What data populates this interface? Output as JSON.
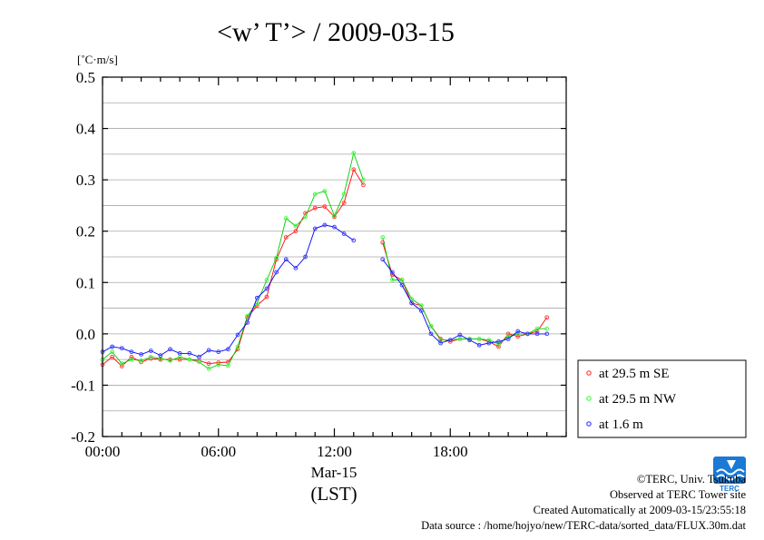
{
  "chart_data": {
    "type": "line",
    "title": "<w’ T’> / 2009-03-15",
    "unit_label": "[˚C·m/s]",
    "xlabel": "(LST)",
    "date_label": "Mar-15",
    "x_ticks": [
      "00:00",
      "06:00",
      "12:00",
      "18:00"
    ],
    "x_tick_hours": [
      0,
      6,
      12,
      18
    ],
    "xlim_hours": [
      0,
      24
    ],
    "ylim": [
      -0.2,
      0.5
    ],
    "y_ticks": [
      "-0.2",
      "-0.1",
      "0.0",
      "0.1",
      "0.2",
      "0.3",
      "0.4",
      "0.5"
    ],
    "y_tick_values": [
      -0.2,
      -0.1,
      0.0,
      0.1,
      0.2,
      0.3,
      0.4,
      0.5
    ],
    "grid": true,
    "legend_position": "right, outside plot",
    "x_time_step_hours": 0.5,
    "series": [
      {
        "name": "at 29.5 m SE",
        "color": "#ff0000",
        "marker_color": "#ff4040",
        "values": [
          -0.06,
          -0.045,
          -0.063,
          -0.045,
          -0.055,
          -0.048,
          -0.05,
          -0.05,
          -0.05,
          -0.05,
          -0.052,
          -0.058,
          -0.056,
          -0.055,
          -0.03,
          0.032,
          0.055,
          0.072,
          0.145,
          0.188,
          0.2,
          0.235,
          0.245,
          0.248,
          0.228,
          0.255,
          0.32,
          0.29,
          null,
          0.178,
          0.115,
          0.105,
          0.06,
          0.055,
          0.015,
          -0.01,
          -0.015,
          -0.01,
          -0.01,
          -0.01,
          -0.015,
          -0.025,
          0.0,
          -0.005,
          0.0,
          0.005,
          0.032
        ]
      },
      {
        "name": "at 29.5 m NW",
        "color": "#00cc00",
        "marker_color": "#40ff40",
        "values": [
          -0.05,
          -0.035,
          -0.058,
          -0.05,
          -0.052,
          -0.045,
          -0.048,
          -0.052,
          -0.045,
          -0.05,
          -0.055,
          -0.068,
          -0.06,
          -0.062,
          -0.025,
          0.035,
          0.06,
          0.105,
          0.148,
          0.225,
          0.21,
          0.228,
          0.272,
          0.278,
          0.23,
          0.272,
          0.352,
          0.3,
          null,
          0.188,
          0.105,
          0.105,
          0.068,
          0.055,
          0.015,
          -0.012,
          -0.012,
          -0.01,
          -0.01,
          -0.01,
          -0.012,
          -0.02,
          -0.005,
          0.0,
          0.0,
          0.01,
          0.01
        ]
      },
      {
        "name": "at 1.6 m",
        "color": "#0000ff",
        "marker_color": "#4040ff",
        "values": [
          -0.035,
          -0.025,
          -0.028,
          -0.035,
          -0.04,
          -0.033,
          -0.042,
          -0.03,
          -0.038,
          -0.038,
          -0.045,
          -0.032,
          -0.035,
          -0.03,
          -0.002,
          0.022,
          0.07,
          0.088,
          0.12,
          0.145,
          0.128,
          0.15,
          0.205,
          0.212,
          0.208,
          0.195,
          0.182,
          null,
          null,
          0.145,
          0.12,
          0.095,
          0.06,
          0.045,
          0.0,
          -0.018,
          -0.012,
          -0.002,
          -0.012,
          -0.022,
          -0.018,
          -0.015,
          -0.01,
          0.005,
          0.0,
          0.0,
          0.0
        ]
      }
    ]
  },
  "footer": {
    "copyright": "©TERC, Univ. Tsukuba",
    "observed": "Observed at TERC Tower site",
    "created": "Created Automatically at 2009-03-15/23:55:18",
    "source": "Data source : /home/hojyo/new/TERC-data/sorted_data/FLUX.30m.dat"
  },
  "logo": {
    "text": "TERC",
    "color": "#1a7ad4"
  }
}
